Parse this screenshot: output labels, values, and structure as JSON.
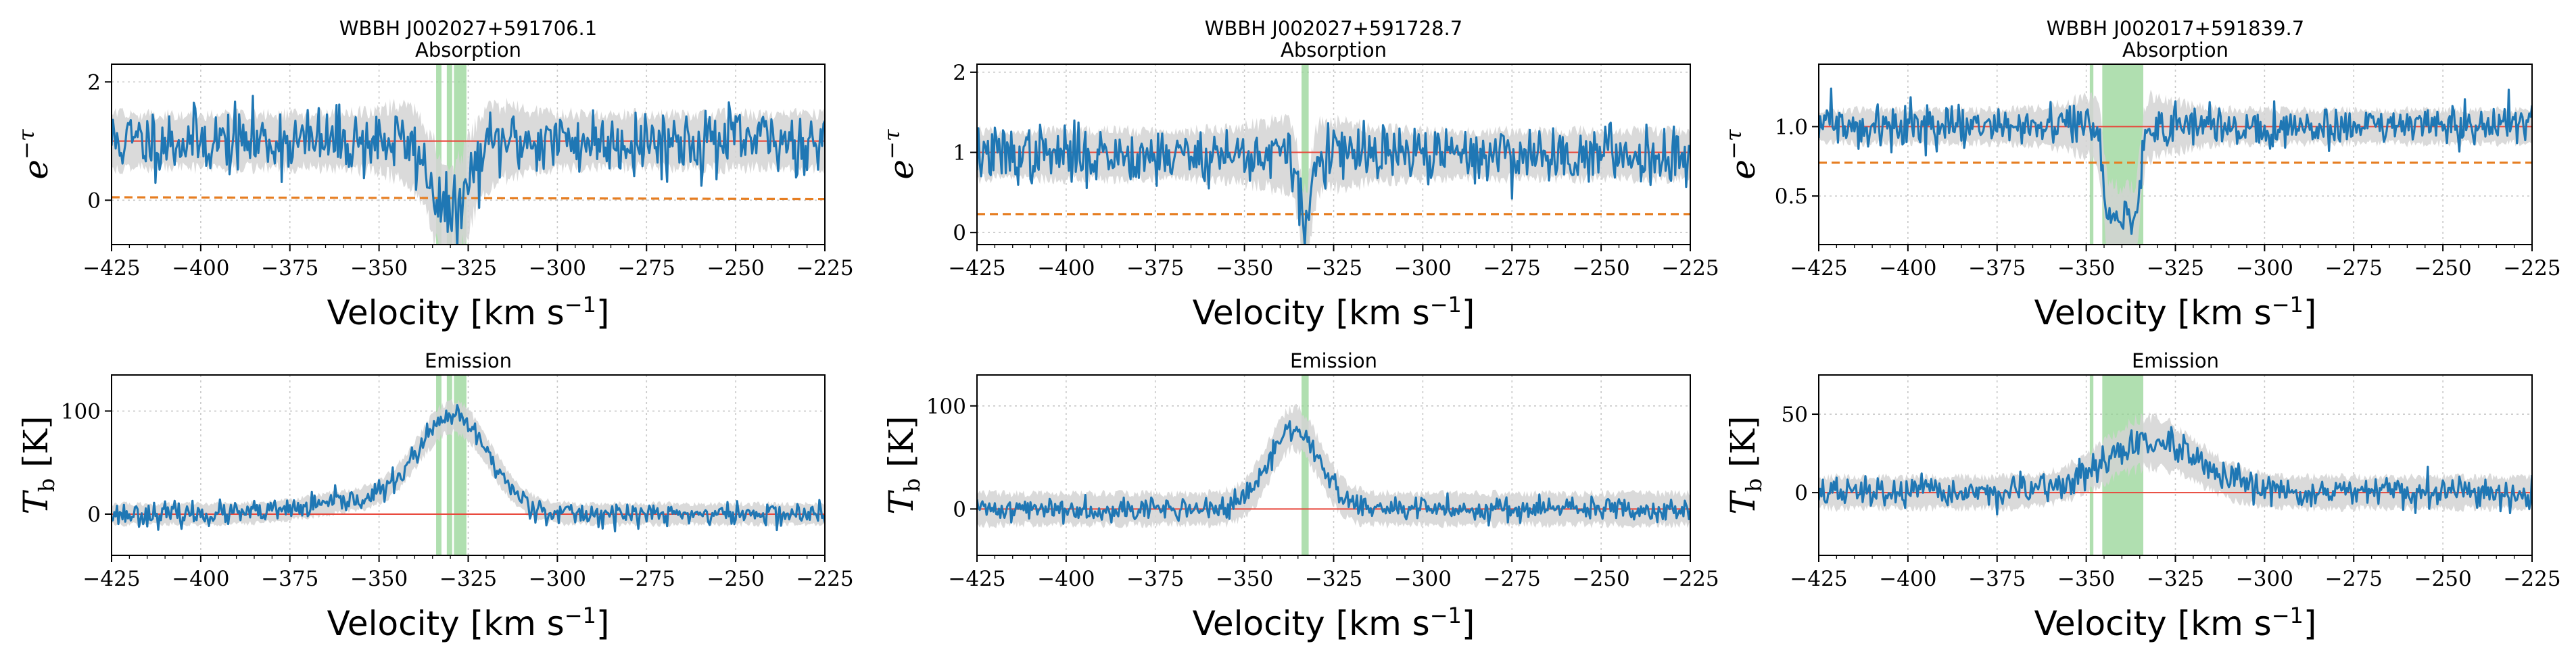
{
  "figure": {
    "description_free": true,
    "colors": {
      "line": "#1f77b4",
      "band": "#d3d3d3",
      "reference": "#e8463a",
      "continuum": "#e67e22",
      "feature": "#8fd18f",
      "grid": "#c8c8c8"
    }
  },
  "chart_data": [
    {
      "type": "line",
      "source": "WBBH J002027+591706.1",
      "title": "WBBH J002027+591706.1",
      "subtitle": "Absorption",
      "xlabel": "Velocity [km s",
      "xlabel_sup": "−1",
      "xlabel_close": "]",
      "ylabel": "e",
      "ylabel_sup": "−τ",
      "xlim": [
        -425,
        -225
      ],
      "ylim": [
        -0.75,
        2.3
      ],
      "xticks": [
        -425,
        -400,
        -375,
        -350,
        -325,
        -300,
        -275,
        -250,
        -225
      ],
      "xtick_labels": [
        "−425",
        "−400",
        "−375",
        "−350",
        "−325",
        "−300",
        "−275",
        "−250",
        "−225"
      ],
      "yticks": [
        0,
        2
      ],
      "ytick_labels": [
        "0",
        "2"
      ],
      "reference": 1.0,
      "continuum": [
        0.05,
        0.02
      ],
      "noise_band": {
        "base": 0.45,
        "peak": 0.8
      },
      "shaded_regions": [
        [
          -334,
          -332.5
        ],
        [
          -331,
          -329.5
        ],
        [
          -329,
          -325.5
        ]
      ],
      "series": [
        {
          "name": "e^-tau",
          "baseline": 1.0,
          "noise": 0.35,
          "features": [
            {
              "center": -330,
              "depth": 1.25,
              "width": 5
            }
          ],
          "seed": 11
        }
      ]
    },
    {
      "type": "line",
      "source": "WBBH J002027+591706.1",
      "title": "Emission",
      "xlabel": "Velocity [km s",
      "xlabel_sup": "−1",
      "xlabel_close": "]",
      "ylabel": "T",
      "ylabel_sub": "b",
      "ylabel_close": " [K]",
      "xlim": [
        -425,
        -225
      ],
      "ylim": [
        -40,
        135
      ],
      "xticks": [
        -425,
        -400,
        -375,
        -350,
        -325,
        -300,
        -275,
        -250,
        -225
      ],
      "xtick_labels": [
        "−425",
        "−400",
        "−375",
        "−350",
        "−325",
        "−300",
        "−275",
        "−250",
        "−225"
      ],
      "yticks": [
        0,
        100
      ],
      "ytick_labels": [
        "0",
        "100"
      ],
      "reference": 0,
      "noise_band": {
        "base": 10,
        "peak": 15
      },
      "shaded_regions": [
        [
          -334,
          -332.5
        ],
        [
          -331,
          -329.5
        ],
        [
          -329,
          -325.5
        ]
      ],
      "series": [
        {
          "name": "T_b",
          "baseline": 0,
          "noise": 7,
          "features": [
            {
              "center": -329,
              "amp": 92,
              "width": 10
            },
            {
              "center": -355,
              "amp": 12,
              "width": 14
            }
          ],
          "seed": 23
        }
      ]
    },
    {
      "type": "line",
      "source": "WBBH J002027+591728.7",
      "title": "WBBH J002027+591728.7",
      "subtitle": "Absorption",
      "xlabel": "Velocity [km s",
      "xlabel_sup": "−1",
      "xlabel_close": "]",
      "ylabel": "e",
      "ylabel_sup": "−τ",
      "xlim": [
        -425,
        -225
      ],
      "ylim": [
        -0.15,
        2.1
      ],
      "xticks": [
        -425,
        -400,
        -375,
        -350,
        -325,
        -300,
        -275,
        -250,
        -225
      ],
      "xtick_labels": [
        "−425",
        "−400",
        "−375",
        "−350",
        "−325",
        "−300",
        "−275",
        "−250",
        "−225"
      ],
      "yticks": [
        0,
        1,
        2
      ],
      "ytick_labels": [
        "0",
        "1",
        "2"
      ],
      "reference": 1.0,
      "continuum": [
        0.23,
        0.23
      ],
      "noise_band": {
        "base": 0.3,
        "peak": 0.45
      },
      "shaded_regions": [
        [
          -334,
          -332
        ]
      ],
      "series": [
        {
          "name": "e^-tau",
          "baseline": 0.97,
          "noise": 0.22,
          "features": [
            {
              "center": -333,
              "depth": 0.9,
              "width": 1.6
            }
          ],
          "seed": 37
        }
      ]
    },
    {
      "type": "line",
      "source": "WBBH J002027+591728.7",
      "title": "Emission",
      "xlabel": "Velocity [km s",
      "xlabel_sup": "−1",
      "xlabel_close": "]",
      "ylabel": "T",
      "ylabel_sub": "b",
      "ylabel_close": " [K]",
      "xlim": [
        -425,
        -225
      ],
      "ylim": [
        -45,
        130
      ],
      "xticks": [
        -425,
        -400,
        -375,
        -350,
        -325,
        -300,
        -275,
        -250,
        -225
      ],
      "xtick_labels": [
        "−425",
        "−400",
        "−375",
        "−350",
        "−325",
        "−300",
        "−275",
        "−250",
        "−225"
      ],
      "yticks": [
        0,
        100
      ],
      "ytick_labels": [
        "0",
        "100"
      ],
      "reference": 0,
      "noise_band": {
        "base": 15,
        "peak": 20
      },
      "shaded_regions": [
        [
          -334,
          -332
        ]
      ],
      "series": [
        {
          "name": "T_b",
          "baseline": 0,
          "noise": 7,
          "features": [
            {
              "center": -336,
              "amp": 78,
              "width": 7
            }
          ],
          "seed": 41
        }
      ]
    },
    {
      "type": "line",
      "source": "WBBH J002017+591839.7",
      "title": "WBBH J002017+591839.7",
      "subtitle": "Absorption",
      "xlabel": "Velocity [km s",
      "xlabel_sup": "−1",
      "xlabel_close": "]",
      "ylabel": "e",
      "ylabel_sup": "−τ",
      "xlim": [
        -425,
        -225
      ],
      "ylim": [
        0.15,
        1.45
      ],
      "xticks": [
        -425,
        -400,
        -375,
        -350,
        -325,
        -300,
        -275,
        -250,
        -225
      ],
      "xtick_labels": [
        "−425",
        "−400",
        "−375",
        "−350",
        "−325",
        "−300",
        "−275",
        "−250",
        "−225"
      ],
      "yticks": [
        0.5,
        1.0
      ],
      "ytick_labels": [
        "0.5",
        "1.0"
      ],
      "reference": 1.0,
      "continuum": [
        0.74,
        0.74
      ],
      "noise_band": {
        "base": 0.12,
        "peak": 0.25
      },
      "shaded_regions": [
        [
          -349,
          -348
        ],
        [
          -345.5,
          -334
        ]
      ],
      "series": [
        {
          "name": "e^-tau",
          "baseline": 1.0,
          "noise": 0.09,
          "features": [
            {
              "center": -340,
              "depth": 0.68,
              "width": 3.5,
              "flat": true
            }
          ],
          "seed": 59
        }
      ]
    },
    {
      "type": "line",
      "source": "WBBH J002017+591839.7",
      "title": "Emission",
      "xlabel": "Velocity [km s",
      "xlabel_sup": "−1",
      "xlabel_close": "]",
      "ylabel": "T",
      "ylabel_sub": "b",
      "ylabel_close": " [K]",
      "xlim": [
        -425,
        -225
      ],
      "ylim": [
        -40,
        75
      ],
      "xticks": [
        -425,
        -400,
        -375,
        -350,
        -325,
        -300,
        -275,
        -250,
        -225
      ],
      "xtick_labels": [
        "−425",
        "−400",
        "−375",
        "−350",
        "−325",
        "−300",
        "−275",
        "−250",
        "−225"
      ],
      "yticks": [
        0,
        50
      ],
      "ytick_labels": [
        "0",
        "50"
      ],
      "reference": 0,
      "noise_band": {
        "base": 10,
        "peak": 16
      },
      "shaded_regions": [
        [
          -349,
          -348
        ],
        [
          -345.5,
          -334
        ]
      ],
      "series": [
        {
          "name": "T_b",
          "baseline": 0,
          "noise": 6,
          "features": [
            {
              "center": -332,
              "amp": 32,
              "width": 13
            }
          ],
          "seed": 67
        }
      ]
    }
  ]
}
